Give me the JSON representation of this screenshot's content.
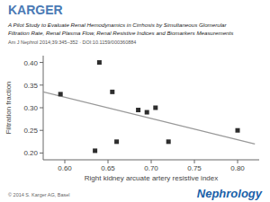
{
  "chart_data": {
    "type": "scatter",
    "title": "A Pilot Study to Evaluate Renal Hemodynamics in Cirrhosis by Simultaneous Glomerular",
    "subtitle": "Filtration Rate, Renal Plasma Flow, Renal Resistive Indices and Biomarkers Measurements",
    "annotations": [
      {
        "text": "KARGER",
        "color": "#4a7ab5"
      },
      {
        "text": "Am J Nephrol 2014;39:345–352 · DOI:10.1159/000360884"
      },
      {
        "text": "© 2014 S. Karger AG, Basel"
      },
      {
        "text": "Nephrology",
        "color": "#1a5fa8"
      }
    ],
    "xlabel": "Right kidney arcuate artery resistive index",
    "ylabel": "Filtration fraction",
    "xlim": [
      0.575,
      0.825
    ],
    "ylim": [
      0.185,
      0.415
    ],
    "xticks": [
      {
        "value": 0.6,
        "label": "0.60"
      },
      {
        "value": 0.65,
        "label": "0.65"
      },
      {
        "value": 0.7,
        "label": "0.70"
      },
      {
        "value": 0.75,
        "label": "0.75"
      },
      {
        "value": 0.8,
        "label": "0.80"
      }
    ],
    "yticks": [
      {
        "value": 0.2,
        "label": "0.20"
      },
      {
        "value": 0.25,
        "label": "0.25"
      },
      {
        "value": 0.3,
        "label": "0.30"
      },
      {
        "value": 0.35,
        "label": "0.35"
      },
      {
        "value": 0.4,
        "label": "0.40"
      }
    ],
    "grid": false,
    "series": [
      {
        "type": "scatter",
        "marker": "square",
        "color": "#2d2d2d",
        "x": [
          0.595,
          0.635,
          0.64,
          0.655,
          0.66,
          0.685,
          0.695,
          0.705,
          0.72,
          0.8
        ],
        "values": [
          0.33,
          0.205,
          0.4,
          0.335,
          0.225,
          0.295,
          0.29,
          0.3,
          0.225,
          0.25
        ]
      },
      {
        "type": "line",
        "color": "#999999",
        "x": [
          0.575,
          0.82
        ],
        "values": [
          0.335,
          0.22
        ]
      }
    ]
  }
}
